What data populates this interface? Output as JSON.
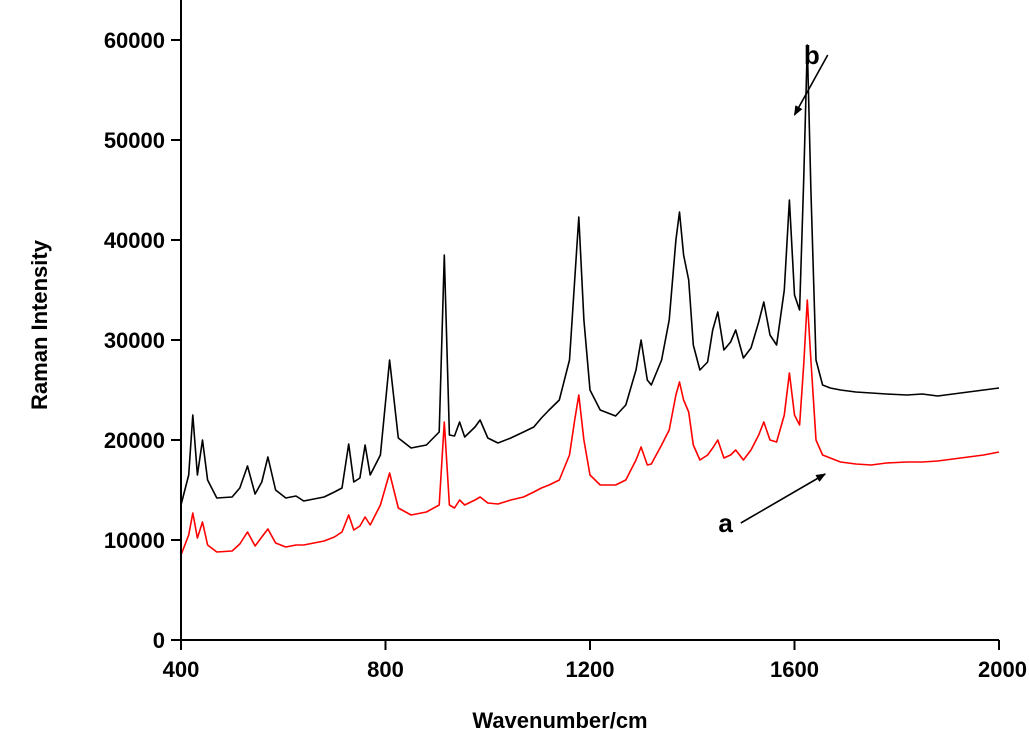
{
  "chart_data": {
    "type": "line",
    "title": "",
    "xlabel": "Wavenumber/cm",
    "ylabel": "Raman Intensity",
    "xlim": [
      400,
      2000
    ],
    "ylim": [
      0,
      64000
    ],
    "x_ticks": [
      400,
      800,
      1200,
      1600,
      2000
    ],
    "y_ticks": [
      0,
      10000,
      20000,
      30000,
      40000,
      50000,
      60000
    ],
    "grid": false,
    "series": [
      {
        "name": "b",
        "color": "#000000",
        "points": [
          [
            400,
            13500
          ],
          [
            415,
            16500
          ],
          [
            423,
            22500
          ],
          [
            432,
            16500
          ],
          [
            442,
            20000
          ],
          [
            452,
            16000
          ],
          [
            470,
            14200
          ],
          [
            500,
            14300
          ],
          [
            515,
            15200
          ],
          [
            530,
            17400
          ],
          [
            545,
            14600
          ],
          [
            558,
            15800
          ],
          [
            570,
            18300
          ],
          [
            585,
            15000
          ],
          [
            605,
            14200
          ],
          [
            625,
            14400
          ],
          [
            640,
            13900
          ],
          [
            660,
            14100
          ],
          [
            680,
            14300
          ],
          [
            700,
            14800
          ],
          [
            715,
            15200
          ],
          [
            728,
            19600
          ],
          [
            738,
            15800
          ],
          [
            750,
            16200
          ],
          [
            760,
            19500
          ],
          [
            770,
            16500
          ],
          [
            790,
            18500
          ],
          [
            808,
            28000
          ],
          [
            825,
            20200
          ],
          [
            850,
            19200
          ],
          [
            880,
            19500
          ],
          [
            905,
            20800
          ],
          [
            915,
            38500
          ],
          [
            925,
            20500
          ],
          [
            935,
            20400
          ],
          [
            945,
            21800
          ],
          [
            955,
            20300
          ],
          [
            975,
            21300
          ],
          [
            985,
            22000
          ],
          [
            1000,
            20200
          ],
          [
            1020,
            19700
          ],
          [
            1045,
            20200
          ],
          [
            1070,
            20800
          ],
          [
            1090,
            21300
          ],
          [
            1105,
            22200
          ],
          [
            1120,
            23000
          ],
          [
            1140,
            24000
          ],
          [
            1160,
            28000
          ],
          [
            1170,
            36000
          ],
          [
            1178,
            42300
          ],
          [
            1188,
            32000
          ],
          [
            1200,
            25000
          ],
          [
            1220,
            23000
          ],
          [
            1250,
            22400
          ],
          [
            1270,
            23500
          ],
          [
            1290,
            27000
          ],
          [
            1300,
            30000
          ],
          [
            1312,
            26000
          ],
          [
            1320,
            25500
          ],
          [
            1340,
            28000
          ],
          [
            1355,
            32000
          ],
          [
            1368,
            40000
          ],
          [
            1375,
            42800
          ],
          [
            1383,
            38500
          ],
          [
            1393,
            36000
          ],
          [
            1402,
            29500
          ],
          [
            1415,
            27000
          ],
          [
            1430,
            27800
          ],
          [
            1440,
            31000
          ],
          [
            1450,
            32800
          ],
          [
            1462,
            29000
          ],
          [
            1475,
            29800
          ],
          [
            1485,
            31000
          ],
          [
            1500,
            28200
          ],
          [
            1515,
            29200
          ],
          [
            1530,
            31800
          ],
          [
            1540,
            33800
          ],
          [
            1552,
            30500
          ],
          [
            1565,
            29500
          ],
          [
            1580,
            35000
          ],
          [
            1590,
            44000
          ],
          [
            1600,
            34500
          ],
          [
            1610,
            33000
          ],
          [
            1618,
            46000
          ],
          [
            1625,
            59500
          ],
          [
            1632,
            45000
          ],
          [
            1642,
            28000
          ],
          [
            1655,
            25500
          ],
          [
            1670,
            25200
          ],
          [
            1690,
            25000
          ],
          [
            1720,
            24800
          ],
          [
            1750,
            24700
          ],
          [
            1780,
            24600
          ],
          [
            1820,
            24500
          ],
          [
            1850,
            24600
          ],
          [
            1880,
            24400
          ],
          [
            1910,
            24600
          ],
          [
            1940,
            24800
          ],
          [
            1970,
            25000
          ],
          [
            2000,
            25200
          ]
        ]
      },
      {
        "name": "a",
        "color": "#ff0000",
        "points": [
          [
            400,
            8500
          ],
          [
            415,
            10500
          ],
          [
            423,
            12700
          ],
          [
            432,
            10200
          ],
          [
            442,
            11800
          ],
          [
            452,
            9500
          ],
          [
            470,
            8800
          ],
          [
            500,
            8900
          ],
          [
            515,
            9600
          ],
          [
            530,
            10800
          ],
          [
            545,
            9400
          ],
          [
            558,
            10300
          ],
          [
            570,
            11100
          ],
          [
            585,
            9700
          ],
          [
            605,
            9300
          ],
          [
            625,
            9500
          ],
          [
            640,
            9500
          ],
          [
            660,
            9700
          ],
          [
            680,
            9900
          ],
          [
            700,
            10300
          ],
          [
            715,
            10800
          ],
          [
            728,
            12500
          ],
          [
            738,
            11000
          ],
          [
            750,
            11400
          ],
          [
            760,
            12300
          ],
          [
            770,
            11500
          ],
          [
            790,
            13500
          ],
          [
            808,
            16700
          ],
          [
            825,
            13200
          ],
          [
            850,
            12500
          ],
          [
            880,
            12800
          ],
          [
            905,
            13500
          ],
          [
            915,
            21800
          ],
          [
            925,
            13500
          ],
          [
            935,
            13200
          ],
          [
            945,
            14000
          ],
          [
            955,
            13500
          ],
          [
            975,
            14000
          ],
          [
            985,
            14300
          ],
          [
            1000,
            13700
          ],
          [
            1020,
            13600
          ],
          [
            1045,
            14000
          ],
          [
            1070,
            14300
          ],
          [
            1090,
            14800
          ],
          [
            1105,
            15200
          ],
          [
            1120,
            15500
          ],
          [
            1140,
            16000
          ],
          [
            1160,
            18500
          ],
          [
            1170,
            22000
          ],
          [
            1178,
            24500
          ],
          [
            1188,
            20000
          ],
          [
            1200,
            16500
          ],
          [
            1220,
            15500
          ],
          [
            1250,
            15500
          ],
          [
            1270,
            16000
          ],
          [
            1290,
            18000
          ],
          [
            1300,
            19300
          ],
          [
            1312,
            17500
          ],
          [
            1320,
            17600
          ],
          [
            1340,
            19500
          ],
          [
            1355,
            21000
          ],
          [
            1368,
            24500
          ],
          [
            1375,
            25800
          ],
          [
            1383,
            24000
          ],
          [
            1393,
            22800
          ],
          [
            1402,
            19500
          ],
          [
            1415,
            18000
          ],
          [
            1430,
            18500
          ],
          [
            1440,
            19200
          ],
          [
            1450,
            20000
          ],
          [
            1462,
            18200
          ],
          [
            1475,
            18500
          ],
          [
            1485,
            19000
          ],
          [
            1500,
            18000
          ],
          [
            1515,
            19000
          ],
          [
            1530,
            20500
          ],
          [
            1540,
            21800
          ],
          [
            1552,
            20000
          ],
          [
            1565,
            19800
          ],
          [
            1580,
            22500
          ],
          [
            1590,
            26700
          ],
          [
            1600,
            22500
          ],
          [
            1610,
            21500
          ],
          [
            1618,
            27500
          ],
          [
            1625,
            34000
          ],
          [
            1632,
            28000
          ],
          [
            1642,
            20000
          ],
          [
            1655,
            18500
          ],
          [
            1670,
            18200
          ],
          [
            1690,
            17800
          ],
          [
            1720,
            17600
          ],
          [
            1750,
            17500
          ],
          [
            1780,
            17700
          ],
          [
            1820,
            17800
          ],
          [
            1850,
            17800
          ],
          [
            1880,
            17900
          ],
          [
            1910,
            18100
          ],
          [
            1940,
            18300
          ],
          [
            1970,
            18500
          ],
          [
            2000,
            18800
          ]
        ]
      }
    ],
    "annotations": [
      {
        "label": "b",
        "from": [
          1665,
          58500
        ],
        "to": [
          1600,
          52500
        ]
      },
      {
        "label": "a",
        "from": [
          1495,
          11700
        ],
        "to": [
          1660,
          16600
        ]
      }
    ]
  }
}
